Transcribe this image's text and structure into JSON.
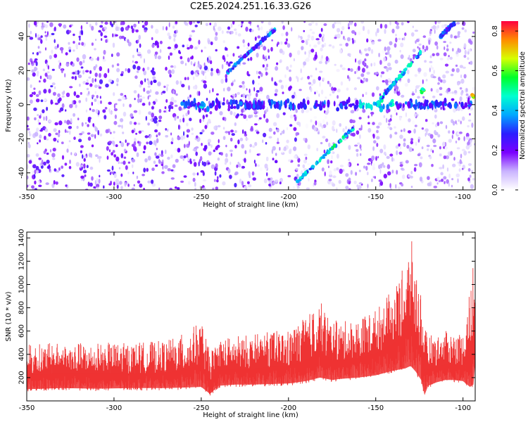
{
  "page": {
    "title": "C2E5.2024.251.16.33.G26"
  },
  "chart_data": [
    {
      "type": "heatmap",
      "title": "C2E5.2024.251.16.33.G26",
      "xlabel": "Height of straight line (km)",
      "ylabel": "Frequency (Hz)",
      "xlim": [
        -350,
        -93
      ],
      "ylim": [
        -50,
        49
      ],
      "x_ticks": [
        -350,
        -300,
        -250,
        -200,
        -150,
        -100
      ],
      "x_tick_labels": [
        "-350",
        "-300",
        "-250",
        "-200",
        "-150",
        "-100"
      ],
      "y_ticks": [
        -40,
        -20,
        0,
        20,
        40
      ],
      "y_tick_labels": [
        "-40",
        "-20",
        "0",
        "20",
        "40"
      ],
      "colorbar": {
        "label": "Normalized spectral amplitude",
        "range": [
          0,
          0.85
        ],
        "ticks": [
          0.0,
          0.2,
          0.4,
          0.6,
          0.8
        ],
        "tick_labels": [
          "0.0",
          "0.2",
          "0.4",
          "0.6",
          "0.8"
        ],
        "colors": [
          "#ffffff",
          "#c9b3ff",
          "#7a00ff",
          "#2a1dff",
          "#00a8ff",
          "#00ffd0",
          "#00ff2a",
          "#d7ff00",
          "#ff8c00",
          "#ff0040"
        ]
      },
      "features": [
        {
          "name": "background noise",
          "amplitude": 0.15
        },
        {
          "name": "0 Hz band",
          "frequency": 0,
          "x_range": [
            -260,
            -93
          ],
          "amplitude": 0.35
        },
        {
          "name": "diagonal streak 1",
          "from": [
            -235,
            19
          ],
          "to": [
            -208,
            44
          ],
          "amplitude": 0.4
        },
        {
          "name": "diagonal streak 2",
          "from": [
            -195,
            -45
          ],
          "to": [
            -163,
            -14
          ],
          "amplitude": 0.5
        },
        {
          "name": "diagonal streak 3",
          "from": [
            -150,
            0
          ],
          "to": [
            -124,
            31
          ],
          "amplitude": 0.45
        },
        {
          "name": "diagonal streak 4",
          "from": [
            -113,
            40
          ],
          "to": [
            -105,
            48
          ],
          "amplitude": 0.35
        },
        {
          "name": "hot spot",
          "x": -123,
          "y": 8,
          "amplitude": 0.75
        },
        {
          "name": "hot spot",
          "x": -94,
          "y": 5,
          "amplitude": 0.85
        },
        {
          "name": "hot spot",
          "x": -249,
          "y": 0,
          "amplitude": 0.5
        }
      ]
    },
    {
      "type": "area",
      "xlabel": "Height of straight line (km)",
      "ylabel": "SNR (10 * v/v)",
      "xlim": [
        -350,
        -93
      ],
      "ylim": [
        0,
        1450
      ],
      "x_ticks": [
        -350,
        -300,
        -250,
        -200,
        -150,
        -100
      ],
      "x_tick_labels": [
        "-350",
        "-300",
        "-250",
        "-200",
        "-150",
        "-100"
      ],
      "y_ticks": [
        200,
        400,
        600,
        800,
        1000,
        1200,
        1400
      ],
      "y_tick_labels": [
        "200",
        "400",
        "600",
        "800",
        "1000",
        "1200",
        "1400"
      ],
      "color": "#ee3333",
      "envelope": {
        "x": [
          -350,
          -330,
          -310,
          -290,
          -270,
          -260,
          -250,
          -245,
          -240,
          -230,
          -220,
          -210,
          -200,
          -190,
          -182,
          -175,
          -170,
          -160,
          -150,
          -140,
          -133,
          -130,
          -127,
          -124,
          -122,
          -120,
          -115,
          -110,
          -105,
          -100,
          -96,
          -94,
          -93
        ],
        "y_top": [
          490,
          500,
          500,
          500,
          520,
          580,
          690,
          420,
          540,
          560,
          570,
          600,
          610,
          720,
          860,
          700,
          680,
          710,
          790,
          960,
          1180,
          1430,
          1150,
          960,
          620,
          580,
          560,
          600,
          600,
          590,
          1000,
          1280,
          760
        ],
        "y_bottom": [
          80,
          90,
          85,
          90,
          90,
          95,
          100,
          40,
          110,
          120,
          120,
          125,
          130,
          150,
          180,
          160,
          170,
          180,
          200,
          240,
          260,
          280,
          230,
          160,
          30,
          110,
          140,
          160,
          160,
          150,
          100,
          120,
          300
        ]
      }
    }
  ]
}
